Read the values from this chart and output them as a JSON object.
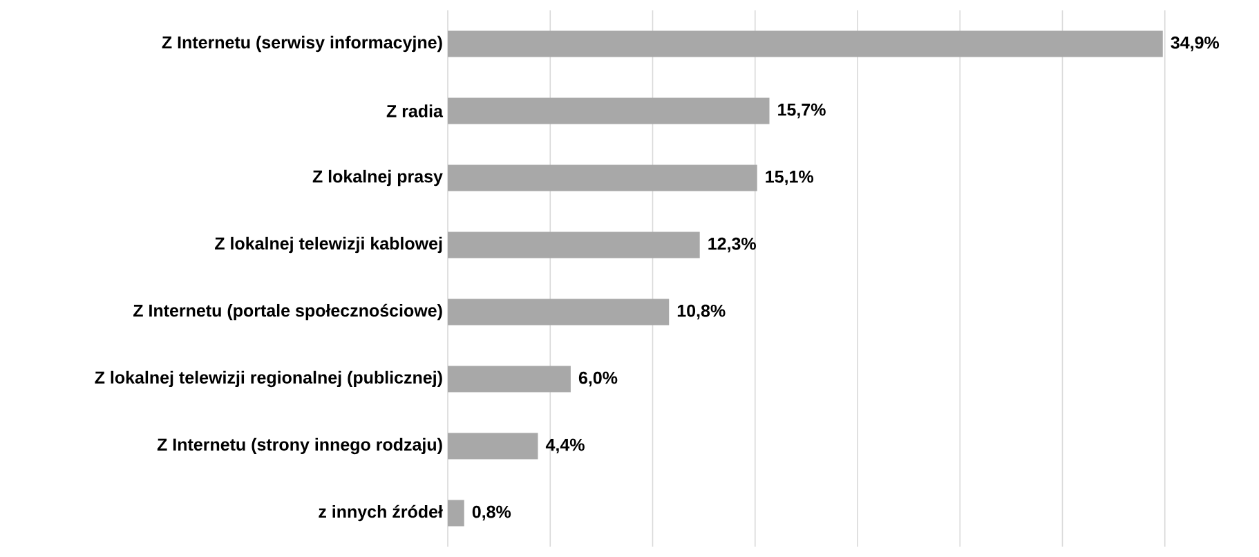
{
  "chart_data": {
    "type": "bar",
    "orientation": "horizontal",
    "categories": [
      "Z Internetu (serwisy informacyjne)",
      "Z radia",
      "Z lokalnej prasy",
      "Z lokalnej telewizji kablowej",
      "Z Internetu (portale społecznościowe)",
      "Z lokalnej telewizji regionalnej (publicznej)",
      "Z Internetu (strony innego rodzaju)",
      "z innych źródeł"
    ],
    "values": [
      34.9,
      15.7,
      15.1,
      12.3,
      10.8,
      6.0,
      4.4,
      0.8
    ],
    "value_labels": [
      "34,9%",
      "15,7%",
      "15,1%",
      "12,3%",
      "10,8%",
      "6,0%",
      "4,4%",
      "0,8%"
    ],
    "color": "#a8a8a8",
    "xlim": [
      0,
      40
    ],
    "xticks": [
      {
        "value": 0,
        "label": null
      },
      {
        "value": 5,
        "label": null
      },
      {
        "value": 10,
        "label": null
      },
      {
        "value": 15,
        "label": null
      },
      {
        "value": 20,
        "label": null
      },
      {
        "value": 25,
        "label": null
      },
      {
        "value": 30,
        "label": null
      },
      {
        "value": 35,
        "label": null
      },
      {
        "value": 40,
        "label": null
      }
    ],
    "grid": "x",
    "tick_labels": "y"
  }
}
